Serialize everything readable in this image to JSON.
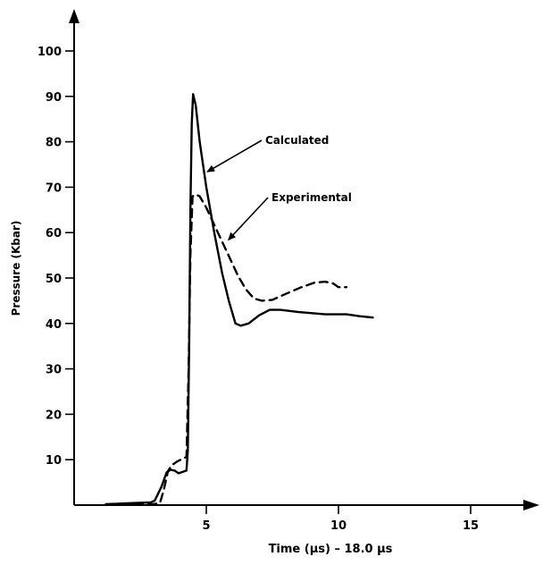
{
  "chart_data": {
    "type": "line",
    "xlabel": "Time (μs) – 18.0 μs",
    "ylabel": "Pressure (Kbar)",
    "xlim": [
      0,
      18
    ],
    "ylim": [
      0,
      105
    ],
    "x_ticks": [
      5,
      10,
      15
    ],
    "y_ticks": [
      10,
      20,
      30,
      40,
      50,
      60,
      70,
      80,
      90,
      100
    ],
    "grid": false,
    "series": [
      {
        "name": "Calculated",
        "style": "solid",
        "color": "#000000",
        "points": [
          [
            1.2,
            0.2
          ],
          [
            2.0,
            0.4
          ],
          [
            2.9,
            0.6
          ],
          [
            3.05,
            1.0
          ],
          [
            3.3,
            4.0
          ],
          [
            3.5,
            7.2
          ],
          [
            3.65,
            7.8
          ],
          [
            3.8,
            7.6
          ],
          [
            3.95,
            7.0
          ],
          [
            4.1,
            7.3
          ],
          [
            4.25,
            7.6
          ],
          [
            4.3,
            12.0
          ],
          [
            4.35,
            35.0
          ],
          [
            4.4,
            65.0
          ],
          [
            4.45,
            84.0
          ],
          [
            4.5,
            90.5
          ],
          [
            4.6,
            88.0
          ],
          [
            4.75,
            80.0
          ],
          [
            5.0,
            70.0
          ],
          [
            5.3,
            60.0
          ],
          [
            5.6,
            51.0
          ],
          [
            5.85,
            45.0
          ],
          [
            6.1,
            40.0
          ],
          [
            6.3,
            39.5
          ],
          [
            6.6,
            40.0
          ],
          [
            7.0,
            41.8
          ],
          [
            7.4,
            43.0
          ],
          [
            7.8,
            43.0
          ],
          [
            8.5,
            42.5
          ],
          [
            9.5,
            42.0
          ],
          [
            10.3,
            42.0
          ],
          [
            10.8,
            41.6
          ],
          [
            11.3,
            41.3
          ]
        ]
      },
      {
        "name": "Experimental",
        "style": "dashed",
        "color": "#000000",
        "points": [
          [
            2.3,
            0.1
          ],
          [
            3.0,
            0.2
          ],
          [
            3.25,
            0.5
          ],
          [
            3.4,
            3.5
          ],
          [
            3.55,
            7.5
          ],
          [
            3.7,
            8.8
          ],
          [
            3.9,
            9.6
          ],
          [
            4.1,
            10.2
          ],
          [
            4.25,
            10.6
          ],
          [
            4.33,
            30.0
          ],
          [
            4.4,
            55.0
          ],
          [
            4.48,
            68.0
          ],
          [
            4.6,
            68.4
          ],
          [
            4.75,
            68.0
          ],
          [
            5.0,
            65.5
          ],
          [
            5.4,
            60.5
          ],
          [
            5.8,
            55.5
          ],
          [
            6.2,
            50.5
          ],
          [
            6.5,
            47.5
          ],
          [
            6.8,
            45.5
          ],
          [
            7.1,
            45.0
          ],
          [
            7.5,
            45.2
          ],
          [
            8.0,
            46.5
          ],
          [
            8.6,
            48.0
          ],
          [
            9.1,
            49.0
          ],
          [
            9.5,
            49.2
          ],
          [
            9.8,
            48.8
          ],
          [
            10.0,
            48.0
          ],
          [
            10.3,
            48.0
          ]
        ]
      }
    ],
    "annotations": [
      {
        "text": "Calculated",
        "points_to_series": "Calculated",
        "at": [
          4.9,
          73.0
        ]
      },
      {
        "text": "Experimental",
        "points_to_series": "Experimental",
        "at": [
          5.7,
          58.0
        ]
      }
    ]
  }
}
